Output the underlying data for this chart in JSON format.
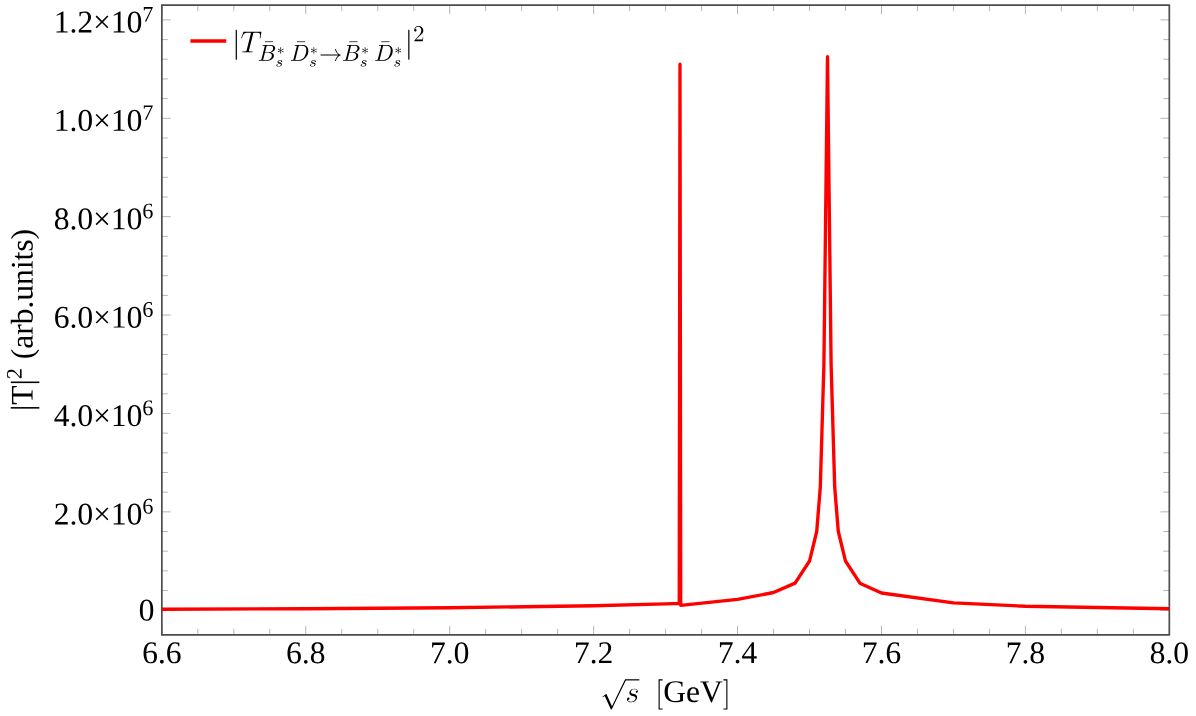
{
  "chart_data": {
    "type": "line",
    "xlabel": "\\sqrt{s}\\ \\ [\\mathrm{GeV}]",
    "ylabel": "|T|$^{2}$ (arb.units)",
    "xlim": [
      6.6,
      8.0
    ],
    "ylim": [
      -500000,
      12300000
    ],
    "xticks": [
      {
        "value": 6.6,
        "label": "6.6"
      },
      {
        "value": 6.8,
        "label": "6.8"
      },
      {
        "value": 7.0,
        "label": "7.0"
      },
      {
        "value": 7.2,
        "label": "7.2"
      },
      {
        "value": 7.4,
        "label": "7.4"
      },
      {
        "value": 7.6,
        "label": "7.6"
      },
      {
        "value": 7.8,
        "label": "7.8"
      },
      {
        "value": 8.0,
        "label": "8.0"
      }
    ],
    "yticks": [
      0,
      {
        "value": 2000000,
        "label": "2.0×10$^{6}$"
      },
      {
        "value": 4000000,
        "label": "4.0×10$^{6}$"
      },
      {
        "value": 6000000,
        "label": "6.0×10$^{6}$"
      },
      {
        "value": 8000000,
        "label": "8.0×10$^{6}$"
      },
      {
        "value": 10000000,
        "label": "1.0×10$^{7}$"
      },
      {
        "value": 12000000,
        "label": "1.2×10$^{7}$"
      }
    ],
    "legend": "top left",
    "grid": false,
    "marker": "none",
    "line_style": "solid",
    "series": [
      {
        "name": "|T_{\\bar{B}_s^*\\,\\bar{D}_s^*\\to\\bar{B}_s^*\\,\\bar{D}_s^*}|^2",
        "color": "#ff0000",
        "x": [
          6.6,
          6.8,
          7.0,
          7.2,
          7.3,
          7.319,
          7.32,
          7.321,
          7.4,
          7.45,
          7.48,
          7.5,
          7.51,
          7.515,
          7.52,
          7.525,
          7.53,
          7.535,
          7.54,
          7.55,
          7.57,
          7.6,
          7.7,
          7.8,
          8.0
        ],
        "values": [
          20000,
          30000,
          50000,
          90000,
          130000,
          140000,
          11100000,
          100000,
          220000,
          360000,
          550000,
          1000000,
          1600000,
          2500000,
          5000000,
          11250000,
          5000000,
          2500000,
          1600000,
          1000000,
          550000,
          350000,
          150000,
          80000,
          30000
        ]
      }
    ]
  }
}
